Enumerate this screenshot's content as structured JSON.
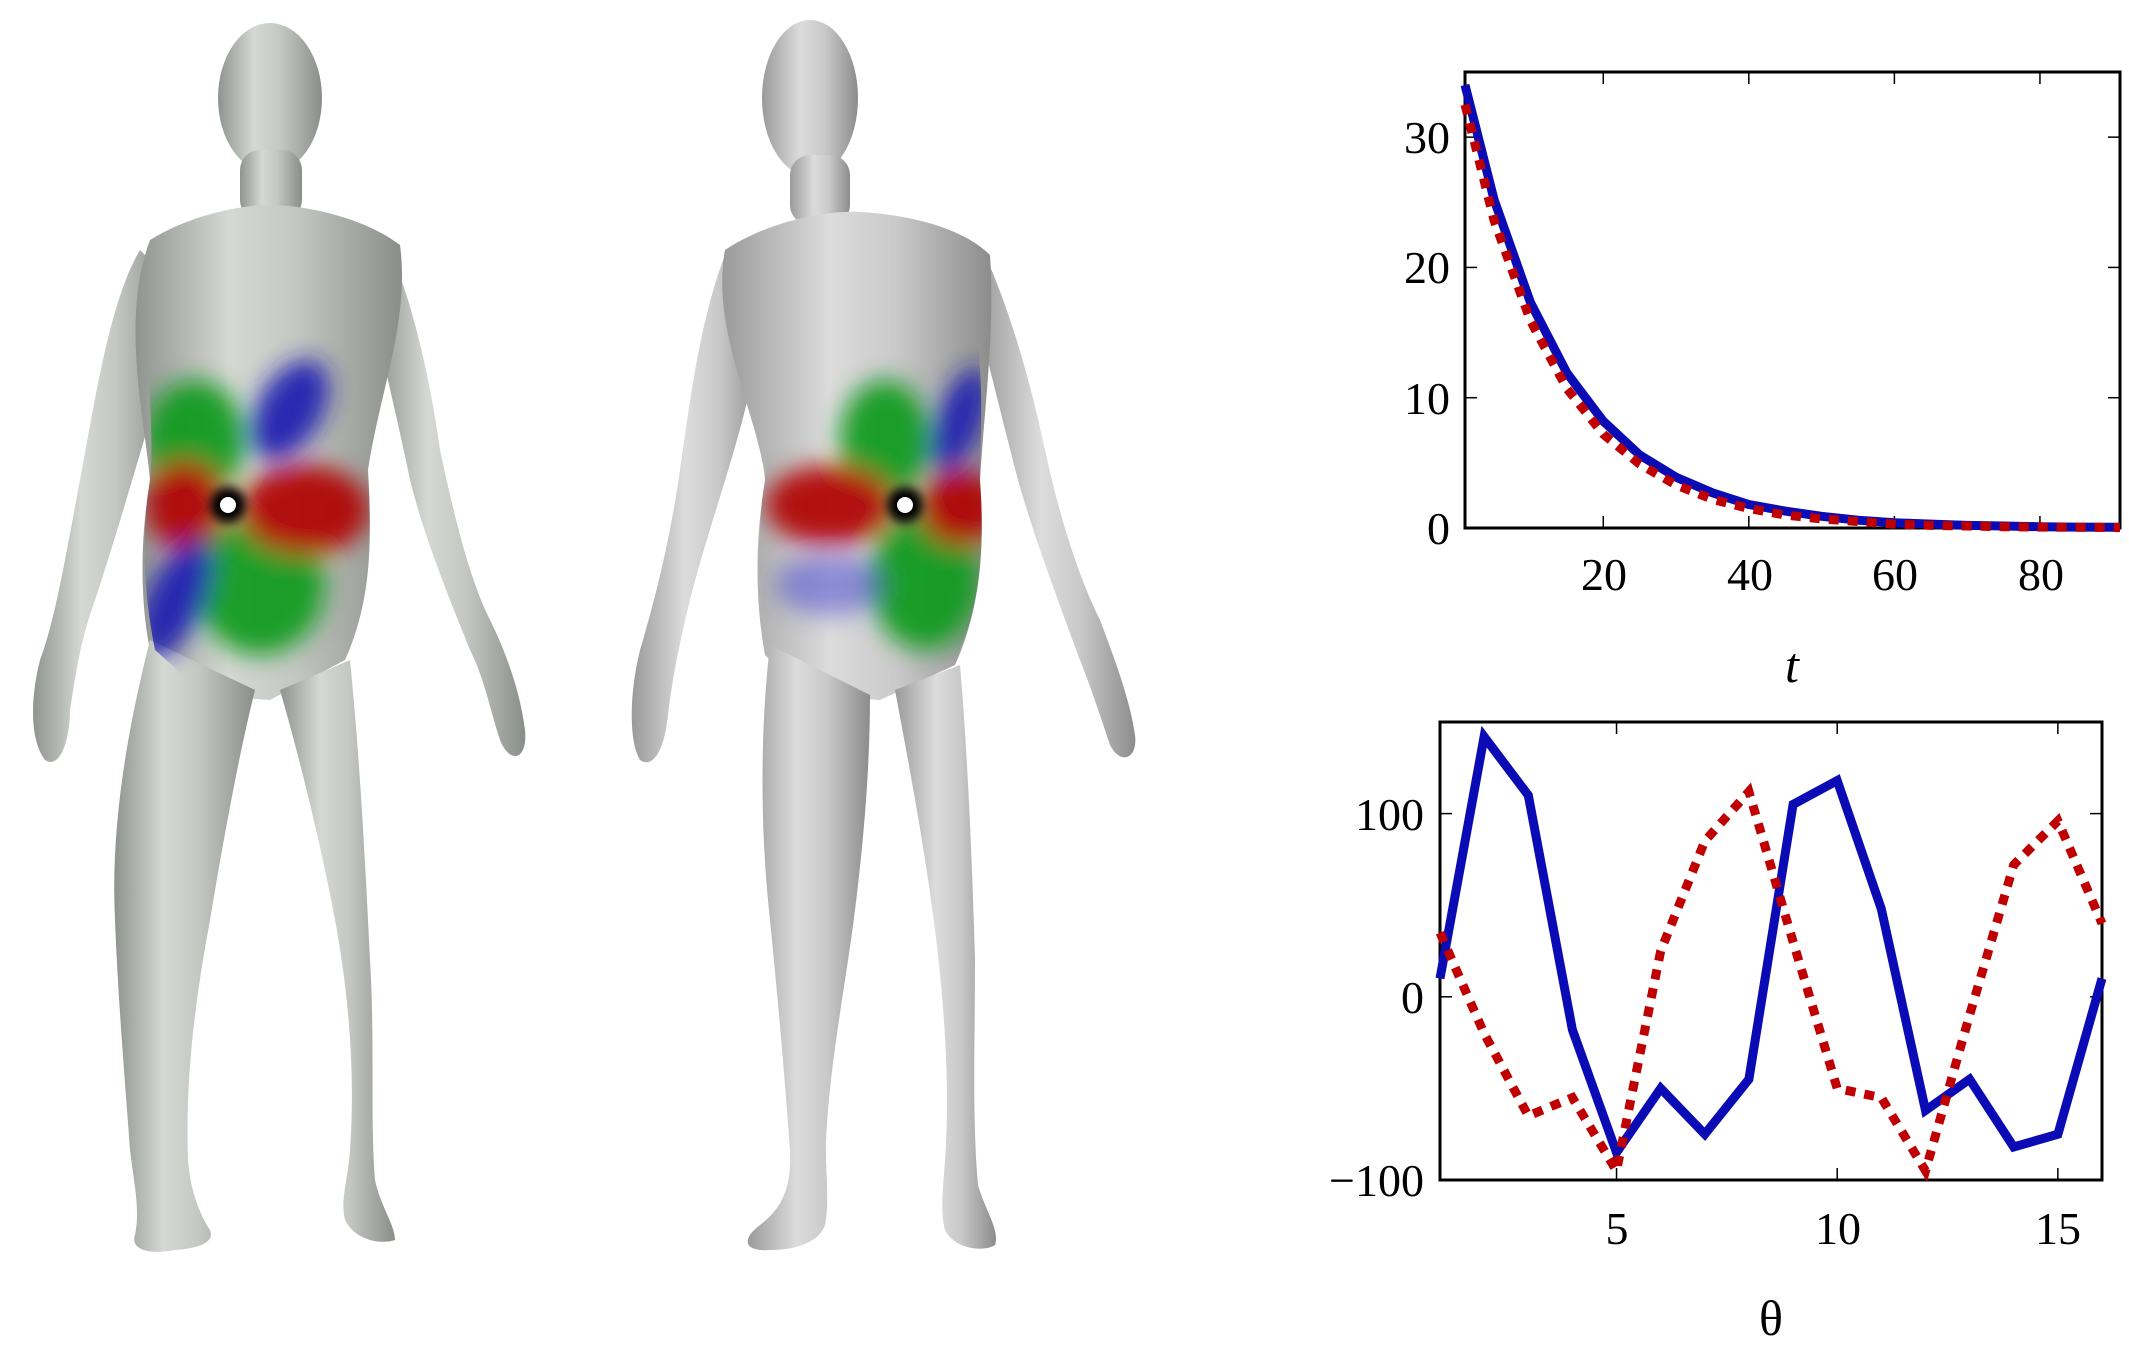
{
  "figure": {
    "meshes": [
      {
        "name": "human-body-mesh-source",
        "marker": "white-dot"
      },
      {
        "name": "human-body-mesh-target",
        "marker": "white-dot"
      }
    ],
    "lobe_colors": {
      "red": "#b00000",
      "green": "#0f9a1a",
      "blue": "#1b1bb0",
      "skin": "#b9bdb8",
      "skin_light": "#e1e4df"
    }
  },
  "chart_data": [
    {
      "type": "line",
      "xlabel": "t",
      "ylabel": "",
      "xlim": [
        1,
        91
      ],
      "ylim": [
        0,
        35
      ],
      "xticks": [
        20,
        40,
        60,
        80
      ],
      "yticks": [
        0,
        10,
        20,
        30
      ],
      "xtick_labels": [
        "20",
        "40",
        "60",
        "80"
      ],
      "ytick_labels": [
        "0",
        "10",
        "20",
        "30"
      ],
      "grid": false,
      "series": [
        {
          "style": "solid",
          "color": "#0b0bb5",
          "x": [
            1,
            5,
            10,
            15,
            20,
            25,
            30,
            35,
            40,
            45,
            50,
            55,
            60,
            65,
            70,
            75,
            80,
            85,
            91
          ],
          "y": [
            34,
            25.2,
            17.3,
            11.9,
            8.2,
            5.6,
            3.9,
            2.7,
            1.8,
            1.3,
            0.9,
            0.6,
            0.4,
            0.3,
            0.2,
            0.15,
            0.1,
            0.07,
            0.05
          ]
        },
        {
          "style": "dotted",
          "color": "#c00000",
          "x": [
            1,
            5,
            10,
            15,
            20,
            25,
            30,
            35,
            40,
            45,
            50,
            55,
            60,
            65,
            70,
            75,
            80,
            85,
            91
          ],
          "y": [
            32.5,
            23.6,
            15.9,
            10.7,
            7.2,
            4.9,
            3.3,
            2.2,
            1.5,
            1.0,
            0.7,
            0.5,
            0.3,
            0.2,
            0.15,
            0.1,
            0.07,
            0.05,
            0.03
          ]
        }
      ]
    },
    {
      "type": "line",
      "xlabel": "θ",
      "ylabel": "",
      "xlim": [
        1,
        16
      ],
      "ylim": [
        -100,
        150
      ],
      "xticks": [
        5,
        10,
        15
      ],
      "yticks": [
        -100,
        0,
        100
      ],
      "xtick_labels": [
        "5",
        "10",
        "15"
      ],
      "ytick_labels": [
        "−100",
        "0",
        "100"
      ],
      "grid": false,
      "series": [
        {
          "style": "solid",
          "color": "#0b0bb5",
          "x": [
            1,
            2,
            3,
            4,
            5,
            6,
            7,
            8,
            9,
            10,
            11,
            12,
            13,
            14,
            15,
            16
          ],
          "y": [
            10,
            142,
            110,
            -18,
            -85,
            -50,
            -75,
            -45,
            105,
            118,
            48,
            -62,
            -45,
            -82,
            -75,
            10
          ]
        },
        {
          "style": "dotted",
          "color": "#c00000",
          "x": [
            1,
            2,
            3,
            4,
            5,
            6,
            7,
            8,
            9,
            10,
            11,
            12,
            13,
            14,
            15,
            16
          ],
          "y": [
            35,
            -20,
            -65,
            -55,
            -95,
            25,
            85,
            112,
            30,
            -50,
            -55,
            -95,
            -10,
            72,
            96,
            40
          ]
        }
      ]
    }
  ]
}
